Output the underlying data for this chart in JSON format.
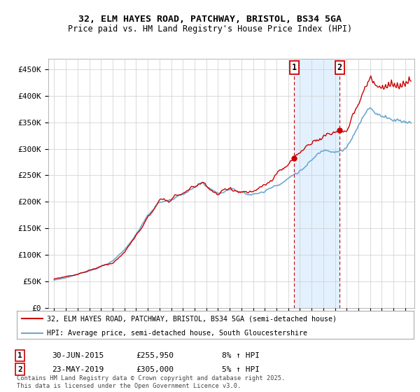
{
  "title1": "32, ELM HAYES ROAD, PATCHWAY, BRISTOL, BS34 5GA",
  "title2": "Price paid vs. HM Land Registry's House Price Index (HPI)",
  "ylabel_ticks": [
    "£0",
    "£50K",
    "£100K",
    "£150K",
    "£200K",
    "£250K",
    "£300K",
    "£350K",
    "£400K",
    "£450K"
  ],
  "ylim": [
    0,
    470000
  ],
  "hpi_color": "#6fa8d0",
  "price_color": "#cc0000",
  "transaction1_x": 2015.5,
  "transaction1_label": "1",
  "transaction1_date": "30-JUN-2015",
  "transaction1_price": "£255,950",
  "transaction1_hpi": "8% ↑ HPI",
  "transaction2_x": 2019.4,
  "transaction2_label": "2",
  "transaction2_date": "23-MAY-2019",
  "transaction2_price": "£305,000",
  "transaction2_hpi": "5% ↑ HPI",
  "legend_line1": "32, ELM HAYES ROAD, PATCHWAY, BRISTOL, BS34 5GA (semi-detached house)",
  "legend_line2": "HPI: Average price, semi-detached house, South Gloucestershire",
  "footnote": "Contains HM Land Registry data © Crown copyright and database right 2025.\nThis data is licensed under the Open Government Licence v3.0.",
  "plot_bg_color": "#ffffff",
  "span_color": "#ddeeff"
}
